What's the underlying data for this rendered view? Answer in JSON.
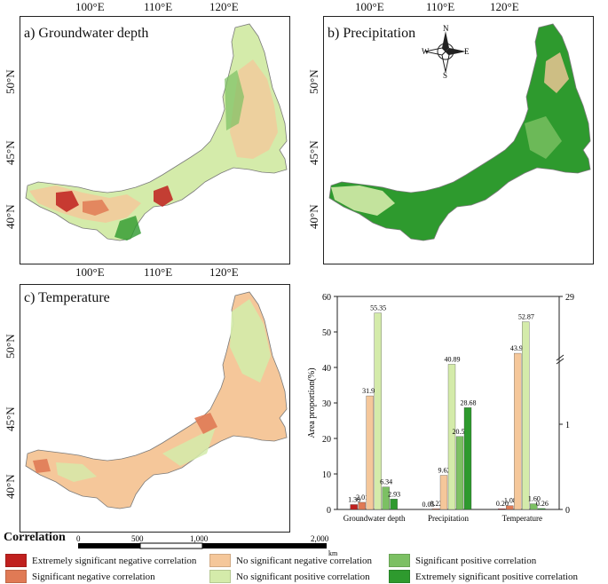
{
  "panels": {
    "a": {
      "title": "a) Groundwater depth"
    },
    "b": {
      "title": "b) Precipitation"
    },
    "c": {
      "title": "c) Temperature"
    }
  },
  "lon_ticks_top": [
    "100°E",
    "110°E",
    "120°E"
  ],
  "lon_ticks_bottom": [
    "100°E",
    "110°E",
    "120°E"
  ],
  "lat_ticks": [
    "50°N",
    "45°N",
    "40°N"
  ],
  "compass": {
    "n": "N",
    "s": "S",
    "e": "E",
    "w": "W"
  },
  "scale_bar": {
    "labels": [
      "0",
      "500",
      "1,000",
      "2,000"
    ],
    "unit": "km"
  },
  "legend": {
    "title": "Correlation",
    "items": [
      {
        "label": "Extremely significant negative correlation",
        "color": "#c0201e"
      },
      {
        "label": "Significant negative correlation",
        "color": "#e07a55"
      },
      {
        "label": "No significant negative correlation",
        "color": "#f5c79a"
      },
      {
        "label": "No significant positive correlation",
        "color": "#d4ebaa"
      },
      {
        "label": "Significant positive correlation",
        "color": "#7cc063"
      },
      {
        "label": "Extremely significant positive correlation",
        "color": "#2e9a2e"
      }
    ]
  },
  "chart_data": {
    "type": "bar",
    "ylabel": "Area proportion(%)",
    "ylim_left": [
      0,
      60
    ],
    "yticks_left": [
      "0",
      "10",
      "20",
      "30",
      "40",
      "50",
      "60"
    ],
    "yticks_right": [
      "0",
      "1",
      "29"
    ],
    "categories": [
      "Groundwater depth",
      "Precipitation",
      "Temperature"
    ],
    "series": [
      {
        "name": "Extremely significant negative correlation",
        "color": "#c0201e",
        "values": [
          1.38,
          0.05,
          0.2
        ]
      },
      {
        "name": "Significant negative correlation",
        "color": "#e07a55",
        "values": [
          2.01,
          0.22,
          1.08
        ]
      },
      {
        "name": "No significant negative correlation",
        "color": "#f5c79a",
        "values": [
          31.99,
          9.62,
          43.99
        ]
      },
      {
        "name": "No significant positive correlation",
        "color": "#d4ebaa",
        "values": [
          55.35,
          40.89,
          52.87
        ]
      },
      {
        "name": "Significant positive correlation",
        "color": "#7cc063",
        "values": [
          6.34,
          20.54,
          1.6
        ]
      },
      {
        "name": "Extremely significant positive correlation",
        "color": "#2e9a2e",
        "values": [
          2.93,
          28.68,
          0.26
        ]
      }
    ],
    "value_labels": [
      [
        "1.38",
        "2.01",
        "31.99",
        "55.35",
        "6.34",
        "2.93"
      ],
      [
        "0.05",
        "0.22",
        "9.62",
        "40.89",
        "20.54",
        "28.68"
      ],
      [
        "0.20",
        "1.08",
        "43.99",
        "52.87",
        "1.60",
        "0.26"
      ]
    ]
  }
}
